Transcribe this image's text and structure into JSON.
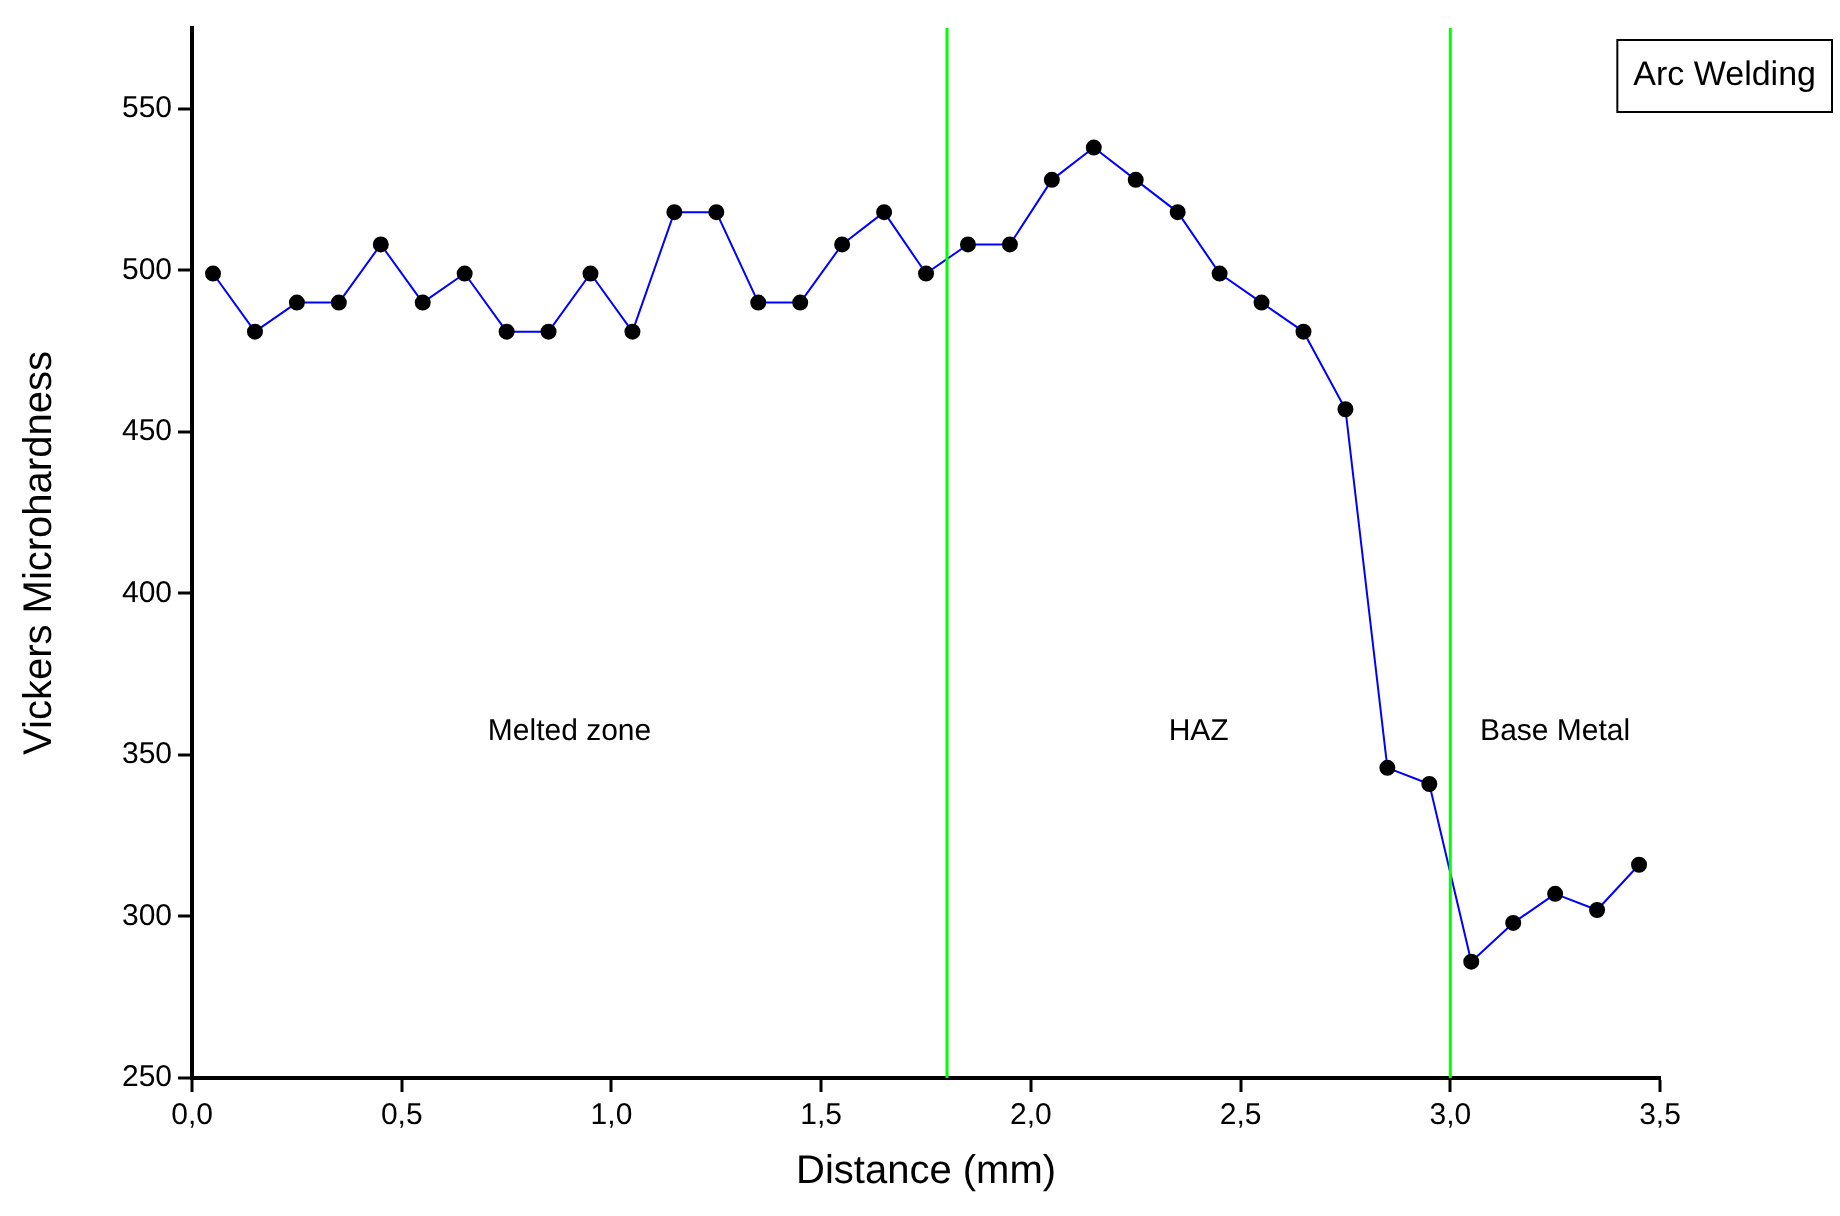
{
  "chart_data": {
    "type": "line",
    "title": "Arc Welding",
    "xlabel": "Distance (mm)",
    "ylabel": "Vickers Microhardness",
    "x": [
      0.05,
      0.15,
      0.25,
      0.35,
      0.45,
      0.55,
      0.65,
      0.75,
      0.85,
      0.95,
      1.05,
      1.15,
      1.25,
      1.35,
      1.45,
      1.55,
      1.65,
      1.75,
      1.85,
      1.95,
      2.05,
      2.15,
      2.25,
      2.35,
      2.45,
      2.55,
      2.65,
      2.75,
      2.85,
      2.95,
      3.05,
      3.15,
      3.25,
      3.35,
      3.45
    ],
    "series": [
      {
        "color": "#0000ff",
        "values": [
          499,
          481,
          490,
          490,
          508,
          490,
          499,
          481,
          481,
          499,
          481,
          518,
          518,
          490,
          490,
          508,
          518,
          499,
          508,
          508,
          528,
          538,
          528,
          518,
          499,
          490,
          481,
          457,
          346,
          341,
          286,
          298,
          307,
          302,
          316
        ]
      }
    ],
    "marker": "circle",
    "line_style": "solid",
    "legend": false,
    "grid": false,
    "xlim": [
      0,
      3.5
    ],
    "xticks": [
      {
        "value": 0,
        "label": "0,0"
      },
      {
        "value": 0.5,
        "label": "0,5"
      },
      {
        "value": 1,
        "label": "1,0"
      },
      {
        "value": 1.5,
        "label": "1,5"
      },
      {
        "value": 2,
        "label": "2,0"
      },
      {
        "value": 2.5,
        "label": "2,5"
      },
      {
        "value": 3,
        "label": "3,0"
      },
      {
        "value": 3.5,
        "label": "3,5"
      }
    ],
    "ylim": [
      250,
      575
    ],
    "yticks": [
      250,
      300,
      350,
      400,
      450,
      500,
      550
    ],
    "ref_lines": [
      {
        "axis": "x",
        "value": 1.8,
        "color": "#00ff00"
      },
      {
        "axis": "x",
        "value": 3.0,
        "color": "#00ff00"
      }
    ],
    "annotations": [
      "Melted zone",
      "HAZ",
      "Base Metal"
    ]
  }
}
